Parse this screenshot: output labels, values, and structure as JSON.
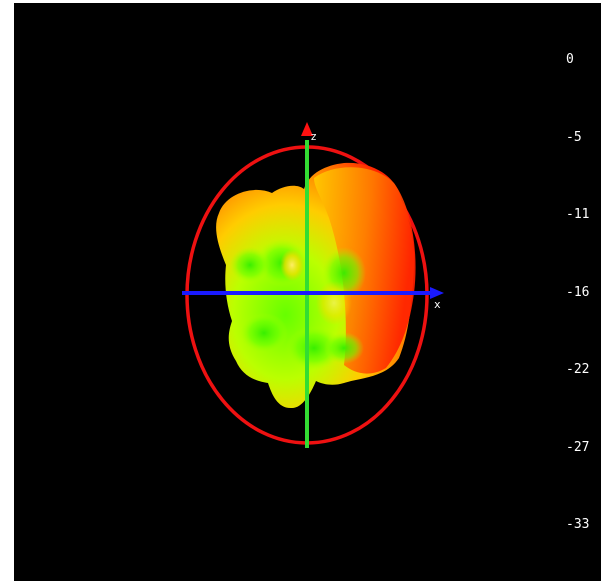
{
  "chart_data": {
    "type": "3d-radiation-pattern",
    "colorbar": {
      "ticks": [
        "0",
        "-5",
        "-11",
        "-16",
        "-22",
        "-27",
        "-33"
      ],
      "range": [
        -33,
        0
      ]
    },
    "axes": {
      "z_label": "z",
      "x_label": "x",
      "z_color": "#33dd33",
      "x_color": "#1a1aff",
      "arrow_z_color": "#ff1111",
      "arrow_x_color": "#1a1aff"
    },
    "reference_circle_color": "#ee1111",
    "pattern_colors": [
      "#ff1a00",
      "#ff8800",
      "#ffdd00",
      "#ccff00",
      "#44ee00"
    ],
    "background": "#000000"
  }
}
